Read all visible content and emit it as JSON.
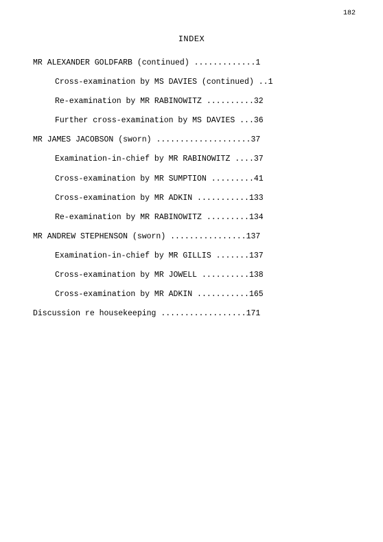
{
  "page_number": "182",
  "title": "INDEX",
  "line_width": 48,
  "entries": [
    {
      "text": "MR ALEXANDER GOLDFARB (continued)",
      "page": "1",
      "indent": false
    },
    {
      "text": "Cross-examination by MS DAVIES (continued)",
      "page": "1",
      "indent": true
    },
    {
      "text": "Re-examination by MR RABINOWITZ",
      "page": "32",
      "indent": true
    },
    {
      "text": "Further cross-examination by MS DAVIES",
      "page": "36",
      "indent": true
    },
    {
      "text": "MR JAMES JACOBSON (sworn)",
      "page": "37",
      "indent": false
    },
    {
      "text": "Examination-in-chief by MR RABINOWITZ",
      "page": "37",
      "indent": true
    },
    {
      "text": "Cross-examination by MR SUMPTION",
      "page": "41",
      "indent": true
    },
    {
      "text": "Cross-examination by MR ADKIN",
      "page": "133",
      "indent": true
    },
    {
      "text": "Re-examination by MR RABINOWITZ",
      "page": "134",
      "indent": true
    },
    {
      "text": "MR ANDREW STEPHENSON (sworn)",
      "page": "137",
      "indent": false
    },
    {
      "text": "Examination-in-chief by MR GILLIS",
      "page": "137",
      "indent": true
    },
    {
      "text": "Cross-examination by MR JOWELL",
      "page": "138",
      "indent": true
    },
    {
      "text": "Cross-examination by MR ADKIN",
      "page": "165",
      "indent": true
    },
    {
      "text": "Discussion re housekeeping",
      "page": "171",
      "indent": false
    }
  ],
  "style": {
    "background_color": "#ffffff",
    "text_color": "#000000",
    "font_family": "Courier New",
    "font_size_body": 11.5,
    "font_size_pagenum": 10,
    "leader_char": "."
  }
}
